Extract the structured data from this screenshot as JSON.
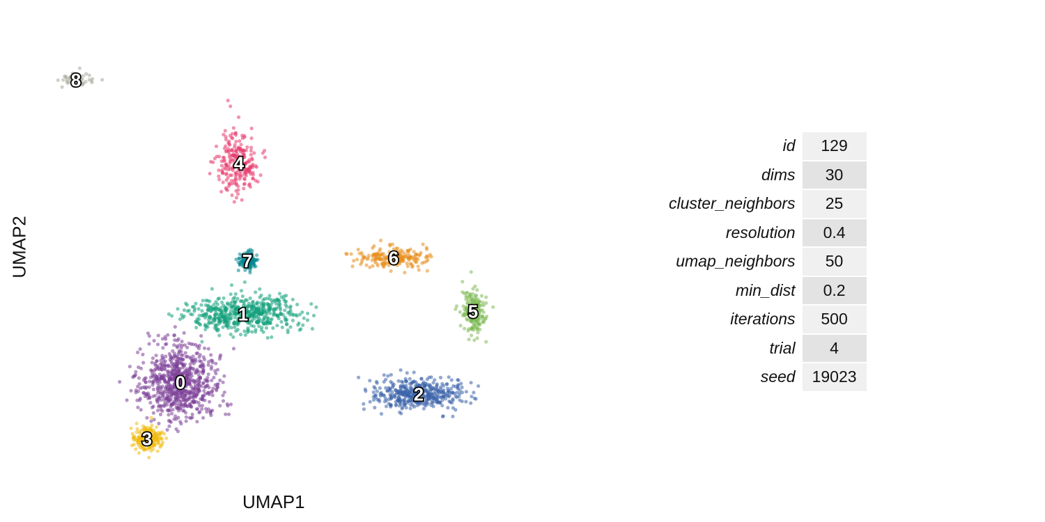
{
  "chart_data": {
    "type": "scatter",
    "title": "",
    "xlabel": "UMAP1",
    "ylabel": "UMAP2",
    "grid": false,
    "legend": "none",
    "clusters": [
      {
        "label": "0",
        "color": "#7B3F98",
        "center": [
          3.4,
          5.3
        ],
        "spread": [
          0.85,
          1.1
        ],
        "n": 750
      },
      {
        "label": "1",
        "color": "#12A07C",
        "center": [
          4.9,
          7.6
        ],
        "spread": [
          1.2,
          0.6
        ],
        "n": 520
      },
      {
        "label": "2",
        "color": "#3B62A9",
        "center": [
          9.1,
          4.9
        ],
        "spread": [
          1.0,
          0.45
        ],
        "n": 430
      },
      {
        "label": "3",
        "color": "#F1BC12",
        "center": [
          2.6,
          3.4
        ],
        "spread": [
          0.3,
          0.35
        ],
        "n": 250
      },
      {
        "label": "4",
        "color": "#E83B6E",
        "center": [
          4.8,
          12.7
        ],
        "spread": [
          0.45,
          0.95
        ],
        "n": 230
      },
      {
        "label": "5",
        "color": "#7FB956",
        "center": [
          10.4,
          7.7
        ],
        "spread": [
          0.25,
          0.7
        ],
        "n": 200
      },
      {
        "label": "6",
        "color": "#E88C1A",
        "center": [
          8.5,
          9.5
        ],
        "spread": [
          0.75,
          0.3
        ],
        "n": 210
      },
      {
        "label": "7",
        "color": "#028690",
        "center": [
          5.0,
          9.4
        ],
        "spread": [
          0.2,
          0.25
        ],
        "n": 120
      },
      {
        "label": "8",
        "color": "#A7A99A",
        "center": [
          0.9,
          15.5
        ],
        "spread": [
          0.35,
          0.25
        ],
        "n": 70
      }
    ],
    "xlim": [
      0,
      11.5
    ],
    "ylim": [
      2,
      17.5
    ]
  },
  "params_table": [
    {
      "key": "id",
      "value": "129"
    },
    {
      "key": "dims",
      "value": "30"
    },
    {
      "key": "cluster_neighbors",
      "value": "25"
    },
    {
      "key": "resolution",
      "value": "0.4"
    },
    {
      "key": "umap_neighbors",
      "value": "50"
    },
    {
      "key": "min_dist",
      "value": "0.2"
    },
    {
      "key": "iterations",
      "value": "500"
    },
    {
      "key": "trial",
      "value": "4"
    },
    {
      "key": "seed",
      "value": "19023"
    }
  ]
}
